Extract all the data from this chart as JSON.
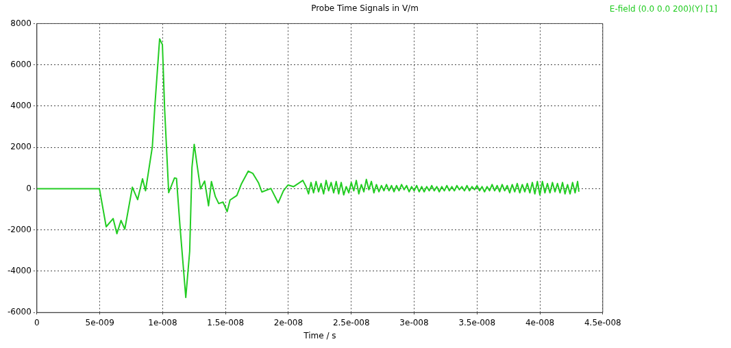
{
  "chart_data": {
    "type": "line",
    "title": "Probe Time Signals in V/m",
    "xlabel": "Time / s",
    "xlim": [
      0,
      4.5e-08
    ],
    "xticks": [
      0,
      {
        "value": 5e-09,
        "label": "5e-009"
      },
      {
        "value": 1e-08,
        "label": "1e-008"
      },
      {
        "value": 1.5e-08,
        "label": "1.5e-008"
      },
      {
        "value": 2e-08,
        "label": "2e-008"
      },
      {
        "value": 2.5e-08,
        "label": "2.5e-008"
      },
      {
        "value": 3e-08,
        "label": "3e-008"
      },
      {
        "value": 3.5e-08,
        "label": "3.5e-008"
      },
      {
        "value": 4e-08,
        "label": "4e-008"
      },
      {
        "value": 4.5e-08,
        "label": "4.5e-008"
      }
    ],
    "ylim": [
      -6000,
      8000
    ],
    "yticks": [
      -6000,
      -4000,
      -2000,
      0,
      2000,
      4000,
      6000,
      8000
    ],
    "grid": true,
    "legend": "top right",
    "marker": "none",
    "line_style": "solid",
    "series": [
      {
        "name": "E-field (0.0 0.0 200)(Y) [1]",
        "color": "#22cc22",
        "x": [
          0,
          4.97e-09,
          5.51e-09,
          6.06e-09,
          6.36e-09,
          6.69e-09,
          6.99e-09,
          7.59e-09,
          8.01e-09,
          8.4e-09,
          8.64e-09,
          9.18e-09,
          9.4e-09,
          9.76e-09,
          9.98e-09,
          1.016e-08,
          1.048e-08,
          1.094e-08,
          1.11e-08,
          1.139e-08,
          1.184e-08,
          1.215e-08,
          1.233e-08,
          1.251e-08,
          1.274e-08,
          1.301e-08,
          1.334e-08,
          1.365e-08,
          1.388e-08,
          1.419e-08,
          1.446e-08,
          1.48e-08,
          1.513e-08,
          1.536e-08,
          1.59e-08,
          1.627e-08,
          1.681e-08,
          1.717e-08,
          1.762e-08,
          1.789e-08,
          1.861e-08,
          1.919e-08,
          1.961e-08,
          1.997e-08,
          2.042e-08,
          2.115e-08,
          2.14e-08,
          2.16e-08,
          2.18e-08,
          2.2e-08,
          2.22e-08,
          2.24e-08,
          2.26e-08,
          2.28e-08,
          2.3e-08,
          2.32e-08,
          2.34e-08,
          2.36e-08,
          2.38e-08,
          2.4e-08,
          2.42e-08,
          2.44e-08,
          2.46e-08,
          2.48e-08,
          2.5e-08,
          2.52e-08,
          2.54e-08,
          2.56e-08,
          2.58e-08,
          2.6e-08,
          2.62e-08,
          2.64e-08,
          2.66e-08,
          2.68e-08,
          2.7e-08,
          2.72e-08,
          2.74e-08,
          2.76e-08,
          2.78e-08,
          2.8e-08,
          2.82e-08,
          2.84e-08,
          2.86e-08,
          2.88e-08,
          2.9e-08,
          2.92e-08,
          2.94e-08,
          2.96e-08,
          2.98e-08,
          3e-08,
          3.02e-08,
          3.04e-08,
          3.06e-08,
          3.08e-08,
          3.1e-08,
          3.12e-08,
          3.14e-08,
          3.16e-08,
          3.18e-08,
          3.2e-08,
          3.22e-08,
          3.24e-08,
          3.26e-08,
          3.28e-08,
          3.3e-08,
          3.32e-08,
          3.34e-08,
          3.36e-08,
          3.38e-08,
          3.4e-08,
          3.42e-08,
          3.44e-08,
          3.46e-08,
          3.48e-08,
          3.5e-08,
          3.52e-08,
          3.54e-08,
          3.56e-08,
          3.58e-08,
          3.6e-08,
          3.62e-08,
          3.64e-08,
          3.66e-08,
          3.68e-08,
          3.7e-08,
          3.72e-08,
          3.74e-08,
          3.76e-08,
          3.78e-08,
          3.8e-08,
          3.82e-08,
          3.84e-08,
          3.86e-08,
          3.88e-08,
          3.9e-08,
          3.92e-08,
          3.94e-08,
          3.96e-08,
          3.98e-08,
          4e-08,
          4.02e-08,
          4.04e-08,
          4.06e-08,
          4.08e-08,
          4.1e-08,
          4.12e-08,
          4.14e-08,
          4.16e-08,
          4.18e-08,
          4.2e-08,
          4.22e-08,
          4.24e-08,
          4.26e-08,
          4.28e-08,
          4.3e-08,
          4.31e-08
        ],
        "values": [
          0,
          0,
          -1845,
          -1450,
          -2180,
          -1540,
          -1960,
          70,
          -530,
          480,
          -100,
          2030,
          4180,
          7260,
          6980,
          3830,
          -190,
          520,
          500,
          -1900,
          -5270,
          -3030,
          1020,
          2150,
          1140,
          -10,
          370,
          -830,
          350,
          -380,
          -720,
          -650,
          -1110,
          -550,
          -330,
          240,
          850,
          740,
          290,
          -160,
          10,
          -690,
          -100,
          180,
          100,
          400,
          100,
          -250,
          300,
          -200,
          350,
          -150,
          250,
          -250,
          400,
          -100,
          300,
          -200,
          350,
          -250,
          300,
          -300,
          100,
          -200,
          300,
          -100,
          400,
          -250,
          200,
          -150,
          450,
          -50,
          350,
          -200,
          200,
          -150,
          150,
          -100,
          200,
          -100,
          150,
          -150,
          150,
          -100,
          200,
          -50,
          150,
          -150,
          100,
          -100,
          150,
          -150,
          100,
          -150,
          100,
          -100,
          150,
          -100,
          100,
          -150,
          100,
          -100,
          150,
          -100,
          100,
          -100,
          150,
          -50,
          100,
          -100,
          150,
          -100,
          100,
          -50,
          150,
          -100,
          100,
          -150,
          100,
          -100,
          200,
          -100,
          150,
          -150,
          200,
          -100,
          150,
          -200,
          200,
          -150,
          250,
          -200,
          200,
          -150,
          250,
          -200,
          300,
          -250,
          350,
          -300,
          350,
          -200,
          250,
          -200,
          300,
          -150,
          250,
          -200,
          300,
          -250,
          200,
          -250,
          300,
          -200,
          350,
          -150
        ]
      }
    ]
  }
}
